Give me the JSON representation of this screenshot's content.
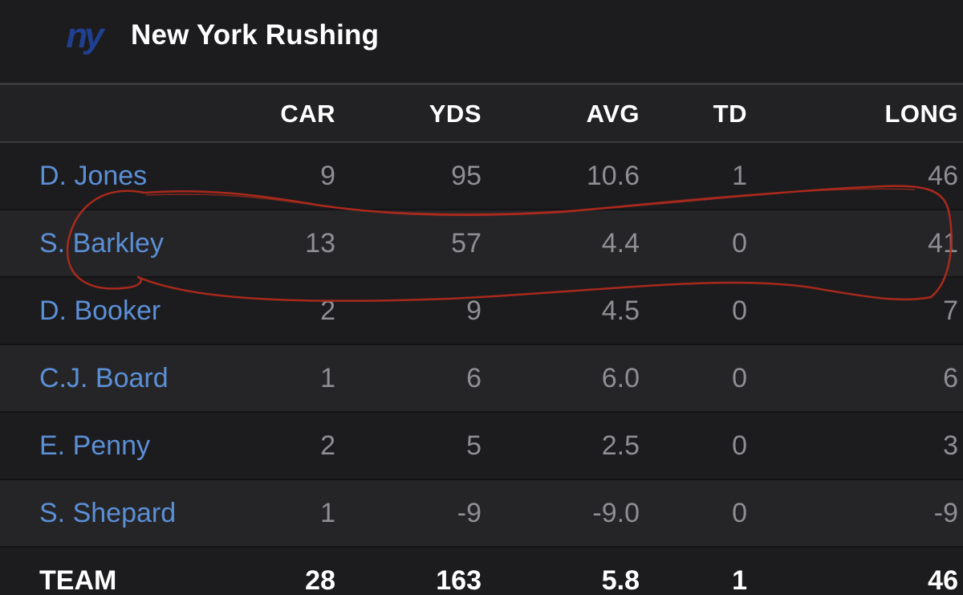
{
  "header": {
    "team_logo_icon": "ny-giants-logo-icon",
    "logo_text": "ny",
    "title": "New York Rushing"
  },
  "colors": {
    "background": "#1c1c1e",
    "player_link": "#5b8fd6",
    "stat_text": "#8e8e93",
    "logo_blue": "#1f3f8f",
    "annotation_red": "#b02a1c"
  },
  "table": {
    "columns": [
      "CAR",
      "YDS",
      "AVG",
      "TD",
      "LONG"
    ],
    "rows": [
      {
        "name": "D. Jones",
        "car": "9",
        "yds": "95",
        "avg": "10.6",
        "td": "1",
        "long": "46"
      },
      {
        "name": "S. Barkley",
        "car": "13",
        "yds": "57",
        "avg": "4.4",
        "td": "0",
        "long": "41"
      },
      {
        "name": "D. Booker",
        "car": "2",
        "yds": "9",
        "avg": "4.5",
        "td": "0",
        "long": "7"
      },
      {
        "name": "C.J. Board",
        "car": "1",
        "yds": "6",
        "avg": "6.0",
        "td": "0",
        "long": "6"
      },
      {
        "name": "E. Penny",
        "car": "2",
        "yds": "5",
        "avg": "2.5",
        "td": "0",
        "long": "3"
      },
      {
        "name": "S. Shepard",
        "car": "1",
        "yds": "-9",
        "avg": "-9.0",
        "td": "0",
        "long": "-9"
      }
    ],
    "total": {
      "name": "TEAM",
      "car": "28",
      "yds": "163",
      "avg": "5.8",
      "td": "1",
      "long": "46"
    }
  },
  "annotation": {
    "type": "hand-drawn-circle",
    "highlighted_player": "S. Barkley"
  }
}
